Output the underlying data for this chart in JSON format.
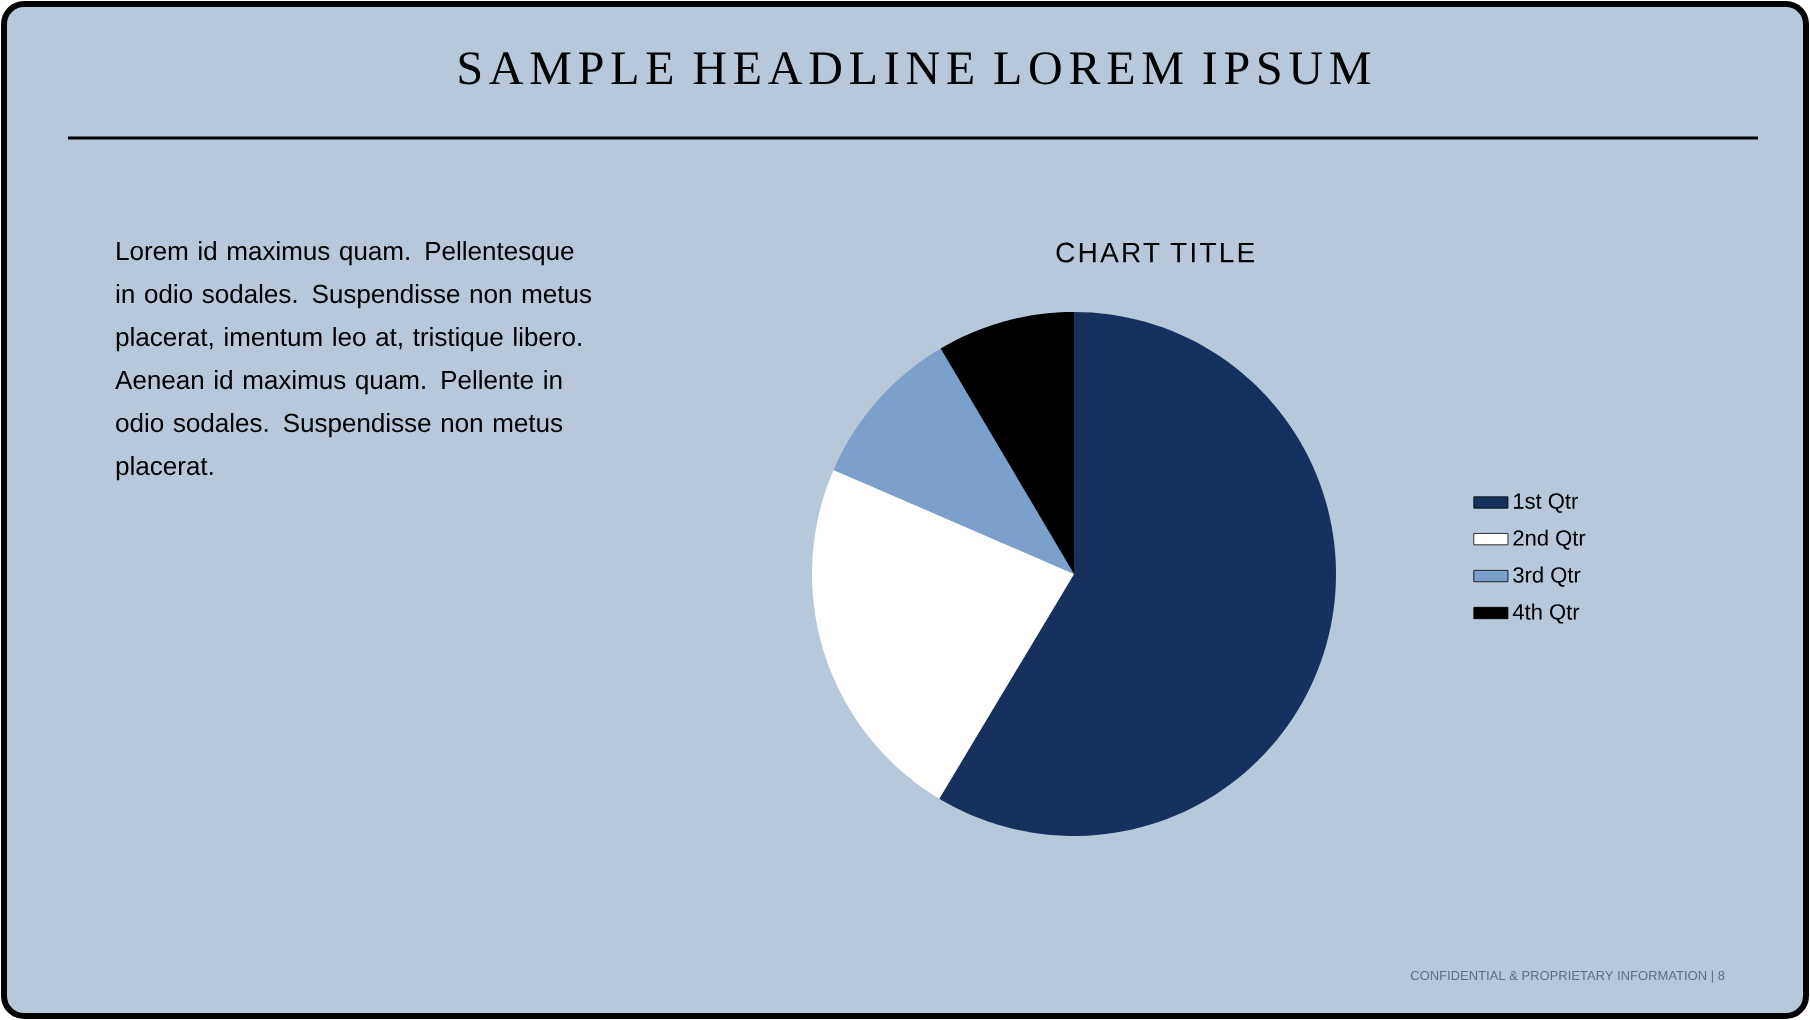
{
  "chart_data": {
    "type": "pie",
    "title": "SAMPLE HEADLINE LOREM IPSUM",
    "subtitle": "CHART TITLE",
    "categories": [
      "1st Qtr",
      "2nd Qtr",
      "3rd Qtr",
      "4th Qtr"
    ],
    "values": [
      58.6,
      22.9,
      10.0,
      8.5
    ],
    "colors": [
      "#17315e",
      "#ffffff",
      "#7aa0cb",
      "#000000"
    ],
    "legend": "right",
    "annotations": [
      "Lorem id maximus quam. Pellentesque in odio sodales. Suspendisse non metus placerat, imentum leo at, tristique libero. Aenean id maximus quam. Pellente in odio sodales. Suspendisse non metus placerat.",
      "CONFIDENTIAL & PROPRIETARY INFORMATION | 8"
    ]
  }
}
